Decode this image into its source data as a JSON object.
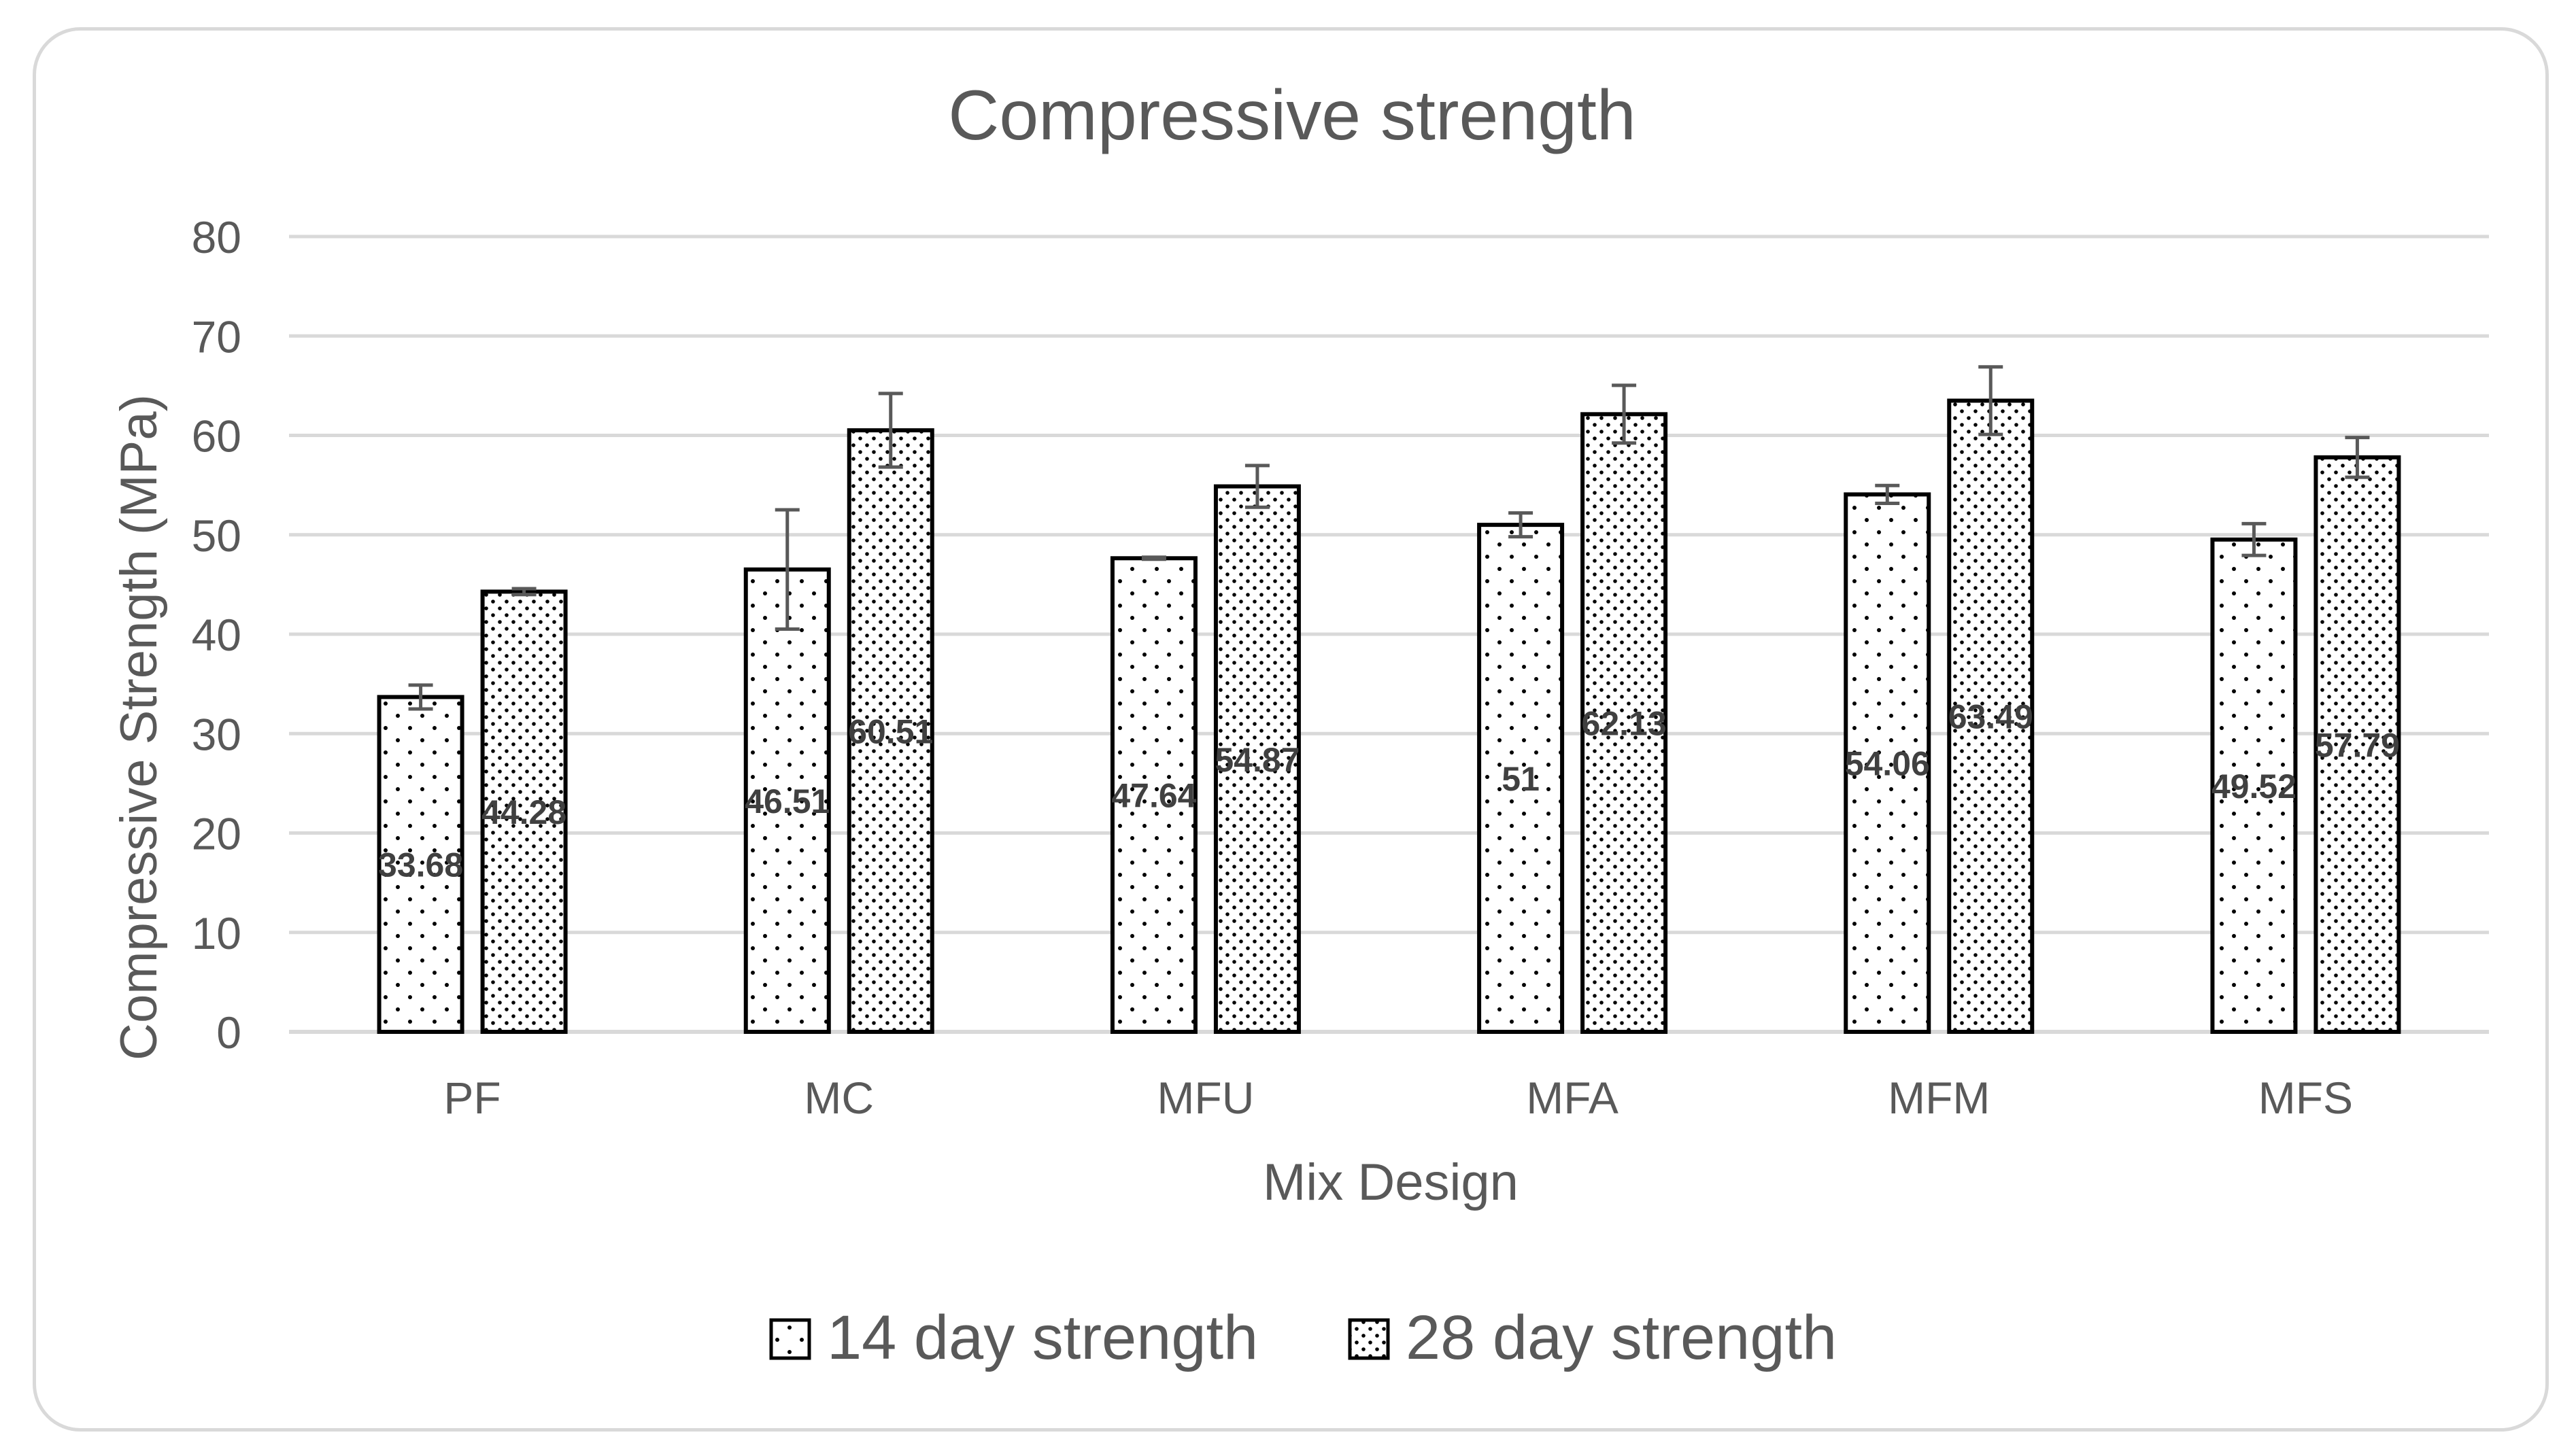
{
  "chart_data": {
    "type": "bar",
    "title": "Compressive strength",
    "xlabel": "Mix Design",
    "ylabel": "Compressive Strength (MPa)",
    "ylim": [
      0,
      80
    ],
    "yticks": [
      0,
      10,
      20,
      30,
      40,
      50,
      60,
      70,
      80
    ],
    "categories": [
      "PF",
      "MC",
      "MFU",
      "MFA",
      "MFM",
      "MFS"
    ],
    "series": [
      {
        "name": "14 day strength",
        "values": [
          33.68,
          46.51,
          47.64,
          51,
          54.06,
          49.52
        ],
        "labels": [
          "33.68",
          "46.51",
          "47.64",
          "51",
          "54.06",
          "49.52"
        ],
        "errors": [
          1.2,
          6.0,
          0.1,
          1.2,
          0.9,
          1.6
        ],
        "pattern": "sparse-dots"
      },
      {
        "name": "28 day strength",
        "values": [
          44.28,
          60.51,
          54.87,
          62.13,
          63.49,
          57.79
        ],
        "labels": [
          "44.28",
          "60.51",
          "54.87",
          "62.13",
          "63.49",
          "57.79"
        ],
        "errors": [
          0.3,
          3.7,
          2.1,
          2.9,
          3.4,
          2.0
        ],
        "pattern": "dense-dots"
      }
    ],
    "legend_position": "bottom",
    "grid": true
  }
}
